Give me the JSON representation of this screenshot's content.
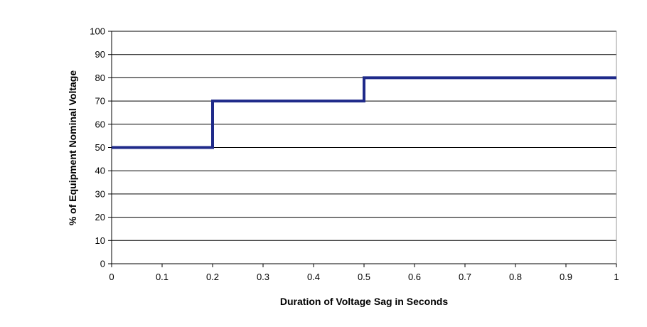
{
  "chart_data": {
    "type": "line",
    "title": "",
    "xlabel": "Duration of Voltage Sag in Seconds",
    "ylabel": "% of Equipment Nominal Voltage",
    "xlim": [
      0,
      1
    ],
    "ylim": [
      0,
      100
    ],
    "x_ticks": [
      "0",
      "0.1",
      "0.2",
      "0.3",
      "0.4",
      "0.5",
      "0.6",
      "0.7",
      "0.8",
      "0.9",
      "1"
    ],
    "y_ticks": [
      "0",
      "10",
      "20",
      "30",
      "40",
      "50",
      "60",
      "70",
      "80",
      "90",
      "100"
    ],
    "grid": "horizontal",
    "legend": "none",
    "series": [
      {
        "line_color": "#1f2a8a",
        "step": true,
        "points": [
          {
            "x": 0,
            "y": 50
          },
          {
            "x": 0.2,
            "y": 50
          },
          {
            "x": 0.2,
            "y": 70
          },
          {
            "x": 0.5,
            "y": 70
          },
          {
            "x": 0.5,
            "y": 80
          },
          {
            "x": 1,
            "y": 80
          }
        ]
      }
    ]
  }
}
